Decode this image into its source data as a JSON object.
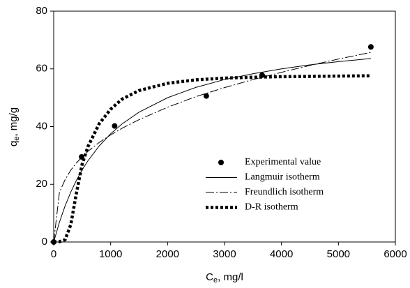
{
  "chart_data": {
    "type": "line",
    "x_label": {
      "main": "C",
      "sub": "e",
      "rest": ", mg/l"
    },
    "y_label": {
      "main": "q",
      "sub": "e",
      "rest": ", mg/g"
    },
    "xlim": [
      0,
      6000
    ],
    "xticks": [
      0,
      1000,
      2000,
      3000,
      4000,
      5000,
      6000
    ],
    "ylim": [
      0,
      80
    ],
    "yticks": [
      0,
      20,
      40,
      60,
      80
    ],
    "series": [
      {
        "name": "Experimental value",
        "style": "marker",
        "color": "#000000",
        "x": [
          0,
          490,
          1070,
          2680,
          3660,
          5570
        ],
        "values": [
          0,
          29.5,
          40.2,
          50.6,
          57.8,
          67.6
        ]
      },
      {
        "name": "Langmuir isotherm",
        "style": "solid",
        "color": "#000000",
        "x": [
          0,
          100,
          200,
          300,
          400,
          500,
          600,
          800,
          1000,
          1200,
          1500,
          2000,
          2500,
          3000,
          3500,
          4000,
          4500,
          5000,
          5570
        ],
        "values": [
          0,
          6.8,
          12.5,
          17.3,
          21.4,
          25.0,
          28.1,
          33.3,
          37.5,
          40.9,
          45.0,
          50.0,
          53.6,
          56.3,
          58.3,
          60.0,
          61.4,
          62.5,
          63.6
        ]
      },
      {
        "name": "Freundlich isotherm",
        "style": "dashdot",
        "color": "#000000",
        "x": [
          0,
          100,
          200,
          300,
          400,
          500,
          600,
          800,
          1000,
          1200,
          1500,
          2000,
          2500,
          3000,
          3500,
          4000,
          4500,
          5000,
          5570
        ],
        "values": [
          0,
          17.1,
          21.6,
          24.9,
          27.4,
          29.5,
          31.4,
          34.5,
          37.1,
          39.4,
          42.4,
          46.7,
          50.4,
          53.5,
          56.3,
          58.8,
          61.2,
          63.4,
          65.7
        ]
      },
      {
        "name": "D-R isotherm",
        "style": "dotted-thick",
        "color": "#000000",
        "x": [
          0,
          100,
          200,
          300,
          400,
          500,
          600,
          800,
          1000,
          1200,
          1500,
          2000,
          2500,
          3000,
          3500,
          4000,
          4500,
          5000,
          5570
        ],
        "values": [
          0,
          0.1,
          0.8,
          6,
          17,
          27,
          33,
          41,
          46,
          49.5,
          52.5,
          55,
          56.2,
          56.8,
          57.1,
          57.3,
          57.4,
          57.5,
          57.6
        ]
      }
    ],
    "legend_position": "lower-right"
  }
}
